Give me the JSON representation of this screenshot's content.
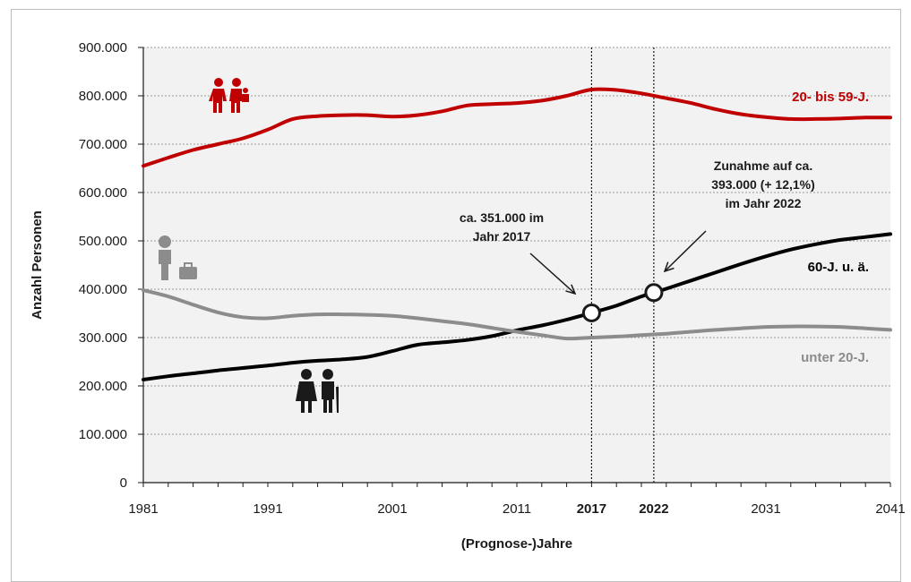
{
  "chart_data": {
    "type": "line",
    "xlabel": "(Prognose-)Jahre",
    "ylabel": "Anzahl Personen",
    "xlim": [
      1981,
      2041
    ],
    "ylim": [
      0,
      900000
    ],
    "x_ticks": [
      "1981",
      "1991",
      "2001",
      "2011",
      "2017",
      "2022",
      "2031",
      "2041"
    ],
    "x_ticks_bold": [
      "2017",
      "2022"
    ],
    "y_ticks": [
      "0",
      "100.000",
      "200.000",
      "300.000",
      "400.000",
      "500.000",
      "600.000",
      "700.000",
      "800.000",
      "900.000"
    ],
    "grid": true,
    "reference_lines": [
      2017,
      2022
    ],
    "series": [
      {
        "name": "20- bis 59-J.",
        "color": "#c00000",
        "icon": "family-icon",
        "x": [
          1981,
          1983,
          1985,
          1987,
          1989,
          1991,
          1993,
          1995,
          1997,
          1999,
          2001,
          2003,
          2005,
          2007,
          2009,
          2011,
          2013,
          2015,
          2017,
          2019,
          2021,
          2023,
          2025,
          2027,
          2029,
          2031,
          2033,
          2035,
          2037,
          2039,
          2041
        ],
        "values": [
          655000,
          672000,
          688000,
          700000,
          712000,
          730000,
          752000,
          758000,
          760000,
          760000,
          757000,
          760000,
          768000,
          780000,
          783000,
          785000,
          790000,
          800000,
          813000,
          812000,
          805000,
          795000,
          785000,
          772000,
          762000,
          756000,
          752000,
          752000,
          753000,
          755000,
          755000
        ]
      },
      {
        "name": "60-J. u. ä.",
        "color": "#000000",
        "icon": "elderly-couple-icon",
        "x": [
          1981,
          1983,
          1985,
          1987,
          1989,
          1991,
          1993,
          1995,
          1997,
          1999,
          2001,
          2003,
          2005,
          2007,
          2009,
          2011,
          2013,
          2015,
          2017,
          2019,
          2021,
          2022,
          2023,
          2025,
          2027,
          2029,
          2031,
          2033,
          2035,
          2037,
          2039,
          2041
        ],
        "values": [
          213000,
          220000,
          226000,
          232000,
          237000,
          242000,
          248000,
          252000,
          255000,
          260000,
          272000,
          285000,
          290000,
          295000,
          303000,
          315000,
          325000,
          337000,
          351000,
          366000,
          385000,
          393000,
          401000,
          418000,
          435000,
          452000,
          468000,
          482000,
          493000,
          502000,
          508000,
          514000
        ]
      },
      {
        "name": "unter 20-J.",
        "color": "#8c8c8c",
        "icon": "child-icon",
        "x": [
          1981,
          1983,
          1985,
          1987,
          1989,
          1991,
          1993,
          1995,
          1997,
          1999,
          2001,
          2003,
          2005,
          2007,
          2009,
          2011,
          2013,
          2015,
          2017,
          2019,
          2021,
          2023,
          2025,
          2027,
          2029,
          2031,
          2033,
          2035,
          2037,
          2039,
          2041
        ],
        "values": [
          398000,
          385000,
          368000,
          352000,
          342000,
          340000,
          345000,
          348000,
          348000,
          347000,
          345000,
          340000,
          334000,
          328000,
          320000,
          312000,
          305000,
          298000,
          300000,
          302000,
          305000,
          308000,
          312000,
          316000,
          319000,
          322000,
          323000,
          323000,
          322000,
          319000,
          316000
        ]
      }
    ],
    "highlight_points": [
      {
        "x": 2017,
        "y": 351000
      },
      {
        "x": 2022,
        "y": 393000
      }
    ],
    "annotations": [
      {
        "lines": [
          "ca. 351.000 im",
          "Jahr 2017"
        ],
        "target_x": 2017,
        "target_y": 351000
      },
      {
        "lines": [
          "Zunahme auf ca.",
          "393.000 (+ 12,1%)",
          "im Jahr 2022"
        ],
        "target_x": 2022,
        "target_y": 393000
      }
    ]
  }
}
